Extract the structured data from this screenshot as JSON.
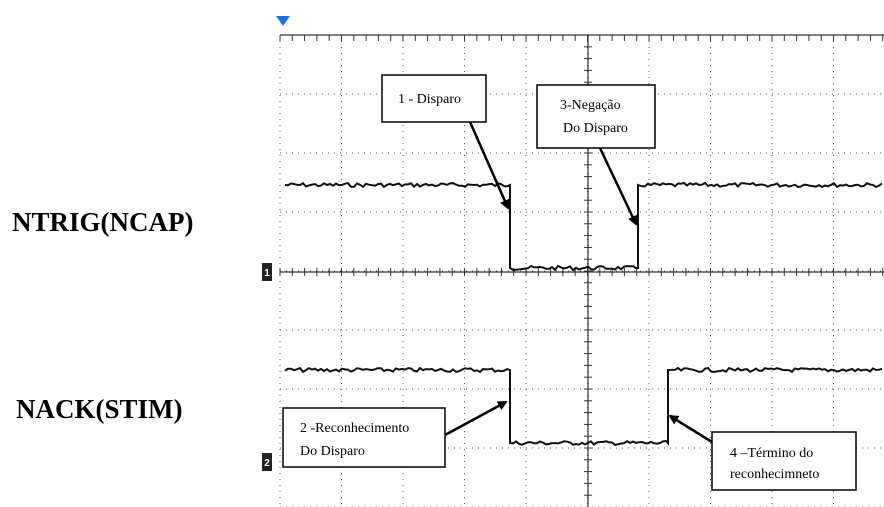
{
  "signals": [
    {
      "label": "NTRIG(NCAP)",
      "channel": "1"
    },
    {
      "label": "NACK(STIM)",
      "channel": "2"
    }
  ],
  "annotations": [
    {
      "lines": [
        "1 - Disparo"
      ]
    },
    {
      "lines": [
        "3-Negação",
        "Do Disparo"
      ]
    },
    {
      "lines": [
        "2 -Reconhecimento",
        "Do Disparo"
      ]
    },
    {
      "lines": [
        "4 –Término do",
        "reconhecimneto"
      ]
    }
  ]
}
